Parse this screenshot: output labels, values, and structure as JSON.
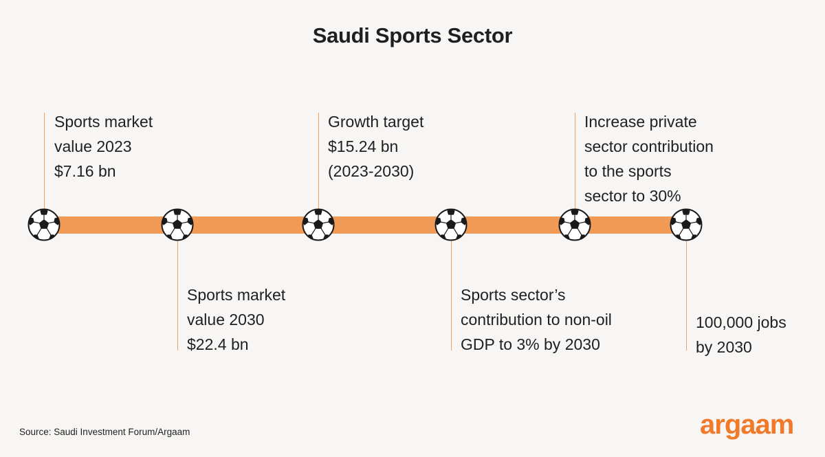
{
  "title": "Saudi Sports Sector",
  "colors": {
    "bar": "#f09a55",
    "logo": "#f07a2a",
    "background": "#f8f6f4"
  },
  "milestones": [
    {
      "icon": "soccer-ball-icon",
      "lines": [
        "Sports market",
        "value 2023",
        "$7.16 bn"
      ]
    },
    {
      "icon": "soccer-ball-icon",
      "lines": [
        "Sports market",
        "value 2030",
        "$22.4 bn"
      ]
    },
    {
      "icon": "soccer-ball-icon",
      "lines": [
        "Growth target",
        "$15.24 bn",
        "(2023-2030)"
      ]
    },
    {
      "icon": "soccer-ball-icon",
      "lines": [
        "Sports sector’s",
        "contribution to non-oil",
        "GDP to 3% by 2030"
      ]
    },
    {
      "icon": "soccer-ball-icon",
      "lines": [
        "Increase private",
        "sector contribution",
        "to the sports",
        "sector to 30%"
      ]
    },
    {
      "icon": "soccer-ball-icon",
      "lines": [
        "100,000 jobs",
        "by 2030"
      ]
    }
  ],
  "source": "Source: Saudi Investment Forum/Argaam",
  "logo": "argaam"
}
